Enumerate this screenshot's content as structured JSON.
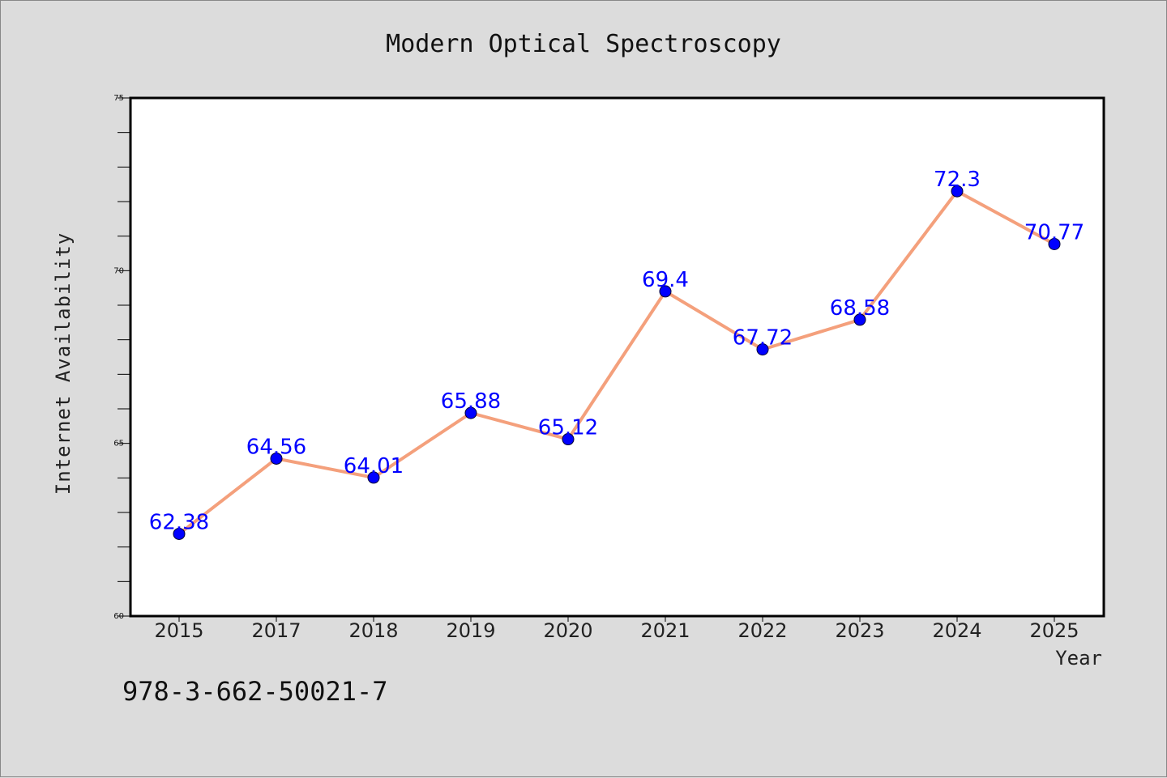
{
  "colors": {
    "background": "#dcdcdc",
    "plot_background": "#ffffff",
    "line": "#f4a07c",
    "marker": "#0000ff",
    "data_label": "#0000ff"
  },
  "footer": {
    "isbn": "978-3-662-50021-7"
  },
  "chart_data": {
    "type": "line",
    "title": "Modern Optical Spectroscopy",
    "xlabel": "Year",
    "ylabel": "Internet Availability",
    "categories": [
      "2015",
      "2017",
      "2018",
      "2019",
      "2020",
      "2021",
      "2022",
      "2023",
      "2024",
      "2025"
    ],
    "series": [
      {
        "values": [
          62.38,
          64.56,
          64.01,
          65.88,
          65.12,
          69.4,
          67.72,
          68.58,
          72.3,
          70.77
        ],
        "labels": [
          "62.38",
          "64.56",
          "64.01",
          "65.88",
          "65.12",
          "69.4",
          "67.72",
          "68.58",
          "72.3",
          "70.77"
        ]
      }
    ],
    "ylim": [
      60,
      75
    ],
    "yticks": [
      "60",
      "65",
      "70",
      "75"
    ],
    "yminor_step": 1,
    "grid": false,
    "legend": "none"
  }
}
